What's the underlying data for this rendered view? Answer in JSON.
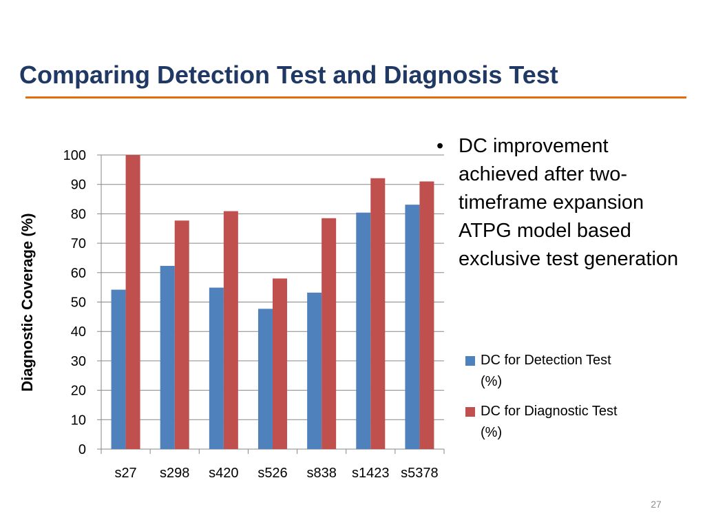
{
  "slide": {
    "title": "Comparing Detection Test and Diagnosis Test",
    "bullet": "DC improvement achieved after two-timeframe expansion ATPG model based exclusive test generation",
    "page_number": "27"
  },
  "colors": {
    "title": "#1f3864",
    "rule": "#e46c0a",
    "detection": "#4f81bd",
    "diagnostic": "#c0504d",
    "grid": "#868686"
  },
  "chart_data": {
    "type": "bar",
    "title": "",
    "xlabel": "",
    "ylabel": "Diagnostic Coverage (%)",
    "ylim": [
      0,
      100
    ],
    "yticks": [
      0,
      10,
      20,
      30,
      40,
      50,
      60,
      70,
      80,
      90,
      100
    ],
    "grid": true,
    "legend_position": "right",
    "categories": [
      "s27",
      "s298",
      "s420",
      "s526",
      "s838",
      "s1423",
      "s5378"
    ],
    "series": [
      {
        "name": "DC for Detection Test (%)",
        "values": [
          54.2,
          62.3,
          54.9,
          47.7,
          53.2,
          80.4,
          83.1
        ]
      },
      {
        "name": "DC for Diagnostic Test (%)",
        "values": [
          100,
          77.7,
          80.9,
          58.0,
          78.5,
          92.1,
          91.0
        ]
      }
    ]
  }
}
